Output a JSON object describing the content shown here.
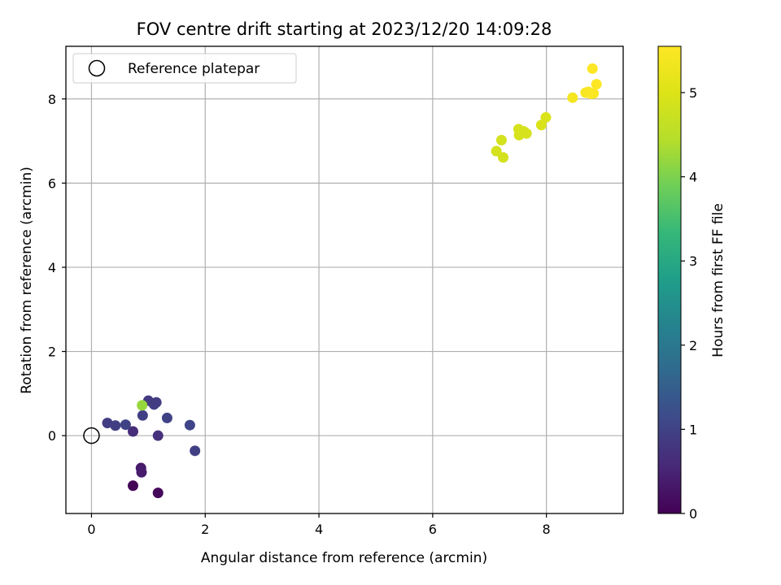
{
  "chart_data": {
    "type": "scatter",
    "title": "FOV centre drift starting at 2023/12/20 14:09:28",
    "xlabel": "Angular distance from reference (arcmin)",
    "ylabel": "Rotation from reference (arcmin)",
    "xlim": [
      -0.45,
      9.35
    ],
    "ylim": [
      -1.85,
      9.25
    ],
    "xticks": [
      0,
      2,
      4,
      6,
      8
    ],
    "yticks": [
      0,
      2,
      4,
      6,
      8
    ],
    "xtick_labels": [
      "0",
      "2",
      "4",
      "6",
      "8"
    ],
    "ytick_labels": [
      "0",
      "2",
      "4",
      "6",
      "8"
    ],
    "grid": true,
    "legend": {
      "position": "top-left",
      "entries": [
        "Reference platepar"
      ]
    },
    "colorbar": {
      "label": "Hours from first FF file",
      "colormap": "viridis",
      "range": [
        0,
        5.55
      ],
      "ticks": [
        0,
        1,
        2,
        3,
        4,
        5
      ],
      "tick_labels": [
        "0",
        "1",
        "2",
        "3",
        "4",
        "5"
      ]
    },
    "reference_point": {
      "x": 0,
      "y": 0,
      "style": "open-circle",
      "color": "#000000"
    },
    "points": [
      {
        "x": 0.73,
        "y": -1.19,
        "hours": 0.05
      },
      {
        "x": 1.17,
        "y": -1.36,
        "hours": 0.12
      },
      {
        "x": 0.87,
        "y": -0.77,
        "hours": 0.35
      },
      {
        "x": 0.88,
        "y": -0.87,
        "hours": 0.38
      },
      {
        "x": 0.73,
        "y": 0.1,
        "hours": 0.65
      },
      {
        "x": 1.17,
        "y": 0.0,
        "hours": 0.7
      },
      {
        "x": 0.28,
        "y": 0.3,
        "hours": 0.9
      },
      {
        "x": 0.42,
        "y": 0.24,
        "hours": 0.95
      },
      {
        "x": 0.6,
        "y": 0.26,
        "hours": 1.0
      },
      {
        "x": 0.9,
        "y": 0.48,
        "hours": 0.95
      },
      {
        "x": 1.0,
        "y": 0.83,
        "hours": 0.85
      },
      {
        "x": 1.1,
        "y": 0.74,
        "hours": 0.95
      },
      {
        "x": 1.14,
        "y": 0.79,
        "hours": 0.9
      },
      {
        "x": 1.33,
        "y": 0.42,
        "hours": 1.0
      },
      {
        "x": 1.73,
        "y": 0.25,
        "hours": 1.05
      },
      {
        "x": 1.82,
        "y": -0.36,
        "hours": 0.95
      },
      {
        "x": 0.89,
        "y": 0.72,
        "hours": 4.2
      },
      {
        "x": 7.12,
        "y": 6.76,
        "hours": 4.85
      },
      {
        "x": 7.21,
        "y": 7.02,
        "hours": 4.85
      },
      {
        "x": 7.24,
        "y": 6.61,
        "hours": 4.85
      },
      {
        "x": 7.51,
        "y": 7.28,
        "hours": 4.9
      },
      {
        "x": 7.52,
        "y": 7.14,
        "hours": 4.9
      },
      {
        "x": 7.6,
        "y": 7.23,
        "hours": 4.9
      },
      {
        "x": 7.65,
        "y": 7.18,
        "hours": 4.9
      },
      {
        "x": 7.91,
        "y": 7.38,
        "hours": 4.95
      },
      {
        "x": 7.99,
        "y": 7.56,
        "hours": 4.95
      },
      {
        "x": 8.46,
        "y": 8.03,
        "hours": 5.4
      },
      {
        "x": 8.69,
        "y": 8.15,
        "hours": 5.45
      },
      {
        "x": 8.74,
        "y": 8.17,
        "hours": 5.45
      },
      {
        "x": 8.79,
        "y": 8.12,
        "hours": 5.5
      },
      {
        "x": 8.83,
        "y": 8.13,
        "hours": 5.5
      },
      {
        "x": 8.81,
        "y": 8.72,
        "hours": 5.55
      },
      {
        "x": 8.88,
        "y": 8.35,
        "hours": 5.55
      }
    ]
  }
}
